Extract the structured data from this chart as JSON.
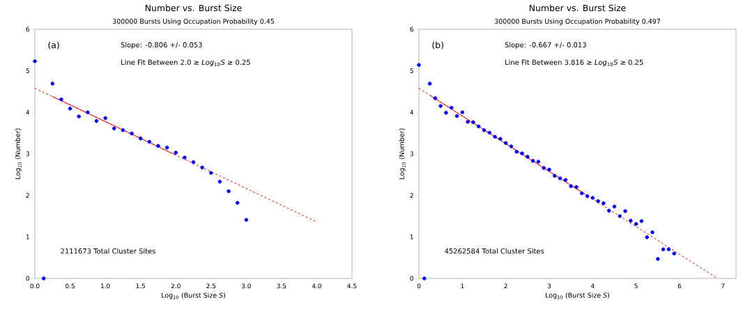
{
  "chart_data": [
    {
      "type": "scatter",
      "title": "Number vs. Burst Size",
      "subtitle": "300000 Bursts Using Occupation Probability 0.45",
      "xlabel": "Log$_{10}$ (Burst Size *S*)",
      "ylabel": "Log$_{10}$ (Number)",
      "annotations": [
        "(a)",
        "Slope:  -0.806 +/- 0.053",
        "Line Fit Between 2.0 ≥ *Log*$_{10}$*S* ≥ 0.25",
        "2111673 Total Cluster Sites"
      ],
      "xlim": [
        0,
        4.5
      ],
      "ylim": [
        0,
        6
      ],
      "xticks": [
        {
          "value": 0,
          "label": "0.0"
        },
        {
          "value": 0.5,
          "label": "0.5"
        },
        {
          "value": 1,
          "label": "1.0"
        },
        {
          "value": 1.5,
          "label": "1.5"
        },
        {
          "value": 2,
          "label": "2.0"
        },
        {
          "value": 2.5,
          "label": "2.5"
        },
        {
          "value": 3,
          "label": "3.0"
        },
        {
          "value": 3.5,
          "label": "3.5"
        },
        {
          "value": 4,
          "label": "4.0"
        },
        {
          "value": 4.5,
          "label": "4.5"
        }
      ],
      "yticks": [
        0,
        1,
        2,
        3,
        4,
        5,
        6
      ],
      "series": [
        {
          "color": "#0000ff",
          "marker": "circle",
          "x": [
            0,
            0.125,
            0.25,
            0.375,
            0.5,
            0.625,
            0.75,
            0.875,
            1.0,
            1.125,
            1.25,
            1.375,
            1.5,
            1.625,
            1.75,
            1.875,
            2.0,
            2.125,
            2.25,
            2.375,
            2.5,
            2.625,
            2.75,
            2.875,
            3.0
          ],
          "values": [
            5.23,
            0,
            4.69,
            4.31,
            4.09,
            3.9,
            4.0,
            3.79,
            3.86,
            3.61,
            3.57,
            3.49,
            3.37,
            3.29,
            3.19,
            3.15,
            3.03,
            2.91,
            2.8,
            2.67,
            2.54,
            2.33,
            2.1,
            1.82,
            1.41
          ]
        },
        {
          "type": "line",
          "color": "#ff0000",
          "marker": "none",
          "line_style": "dashed",
          "x": [
            0,
            4.0
          ],
          "values": [
            4.58,
            1.36
          ]
        },
        {
          "type": "line",
          "color": "#ff0000",
          "marker": "none",
          "line_style": "solid",
          "x": [
            0.25,
            2.0
          ],
          "values": [
            4.38,
            2.97
          ]
        }
      ]
    },
    {
      "type": "scatter",
      "title": "Number vs. Burst Size",
      "subtitle": "300000 Bursts Using Occupation Probability 0.497",
      "xlabel": "Log$_{10}$ (Burst Size *S*)",
      "ylabel": "Log$_{10}$ (Number)",
      "annotations": [
        "(b)",
        "Slope:  -0.667 +/- 0.013",
        "Line Fit Between 3.816 ≥ *Log*$_{10}$*S* ≥ 0.25",
        "45262584 Total Cluster Sites"
      ],
      "xlim": [
        0,
        7.3
      ],
      "ylim": [
        0,
        6
      ],
      "xticks": [
        0,
        1,
        2,
        3,
        4,
        5,
        6,
        7
      ],
      "yticks": [
        0,
        1,
        2,
        3,
        4,
        5,
        6
      ],
      "series": [
        {
          "color": "#0000ff",
          "marker": "circle",
          "x": [
            0,
            0.125,
            0.25,
            0.375,
            0.5,
            0.625,
            0.75,
            0.875,
            1.0,
            1.125,
            1.25,
            1.375,
            1.5,
            1.625,
            1.75,
            1.875,
            2.0,
            2.125,
            2.25,
            2.375,
            2.5,
            2.625,
            2.75,
            2.875,
            3.0,
            3.125,
            3.25,
            3.375,
            3.5,
            3.625,
            3.75,
            3.875,
            4.0,
            4.125,
            4.25,
            4.375,
            4.5,
            4.625,
            4.75,
            4.875,
            5.0,
            5.125,
            5.25,
            5.375,
            5.5,
            5.625,
            5.75,
            5.875
          ],
          "values": [
            5.14,
            0,
            4.69,
            4.34,
            4.15,
            3.99,
            4.11,
            3.91,
            4.0,
            3.77,
            3.76,
            3.66,
            3.57,
            3.51,
            3.41,
            3.36,
            3.26,
            3.18,
            3.05,
            3.01,
            2.93,
            2.83,
            2.81,
            2.66,
            2.62,
            2.47,
            2.41,
            2.37,
            2.22,
            2.2,
            2.05,
            1.98,
            1.94,
            1.86,
            1.81,
            1.63,
            1.73,
            1.5,
            1.62,
            1.39,
            1.31,
            1.38,
            0.99,
            1.11,
            0.47,
            0.7,
            0.7,
            0.6
          ]
        },
        {
          "type": "line",
          "color": "#ff0000",
          "marker": "none",
          "line_style": "dashed",
          "x": [
            0,
            6.87
          ],
          "values": [
            4.58,
            0
          ]
        },
        {
          "type": "line",
          "color": "#ff0000",
          "marker": "none",
          "line_style": "solid",
          "x": [
            0.25,
            3.816
          ],
          "values": [
            4.41,
            2.03
          ]
        }
      ]
    }
  ]
}
